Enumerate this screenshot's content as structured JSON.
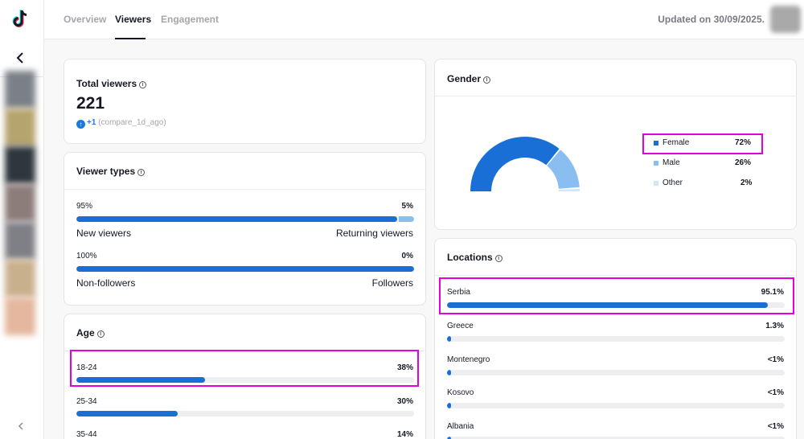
{
  "nav": {
    "tabs": [
      {
        "label": "Overview"
      },
      {
        "label": "Viewers"
      },
      {
        "label": "Engagement"
      }
    ],
    "updated": "Updated on 30/09/2025."
  },
  "rail": {
    "logo_icon": "tiktok-logo",
    "back_icon": "chevron-left-icon",
    "collapse_icon": "chevron-left-icon",
    "thumb_colors": [
      "#7b8088",
      "#b6a46e",
      "#2f363d",
      "#8c7c7a",
      "#7f7f86",
      "#c9b08d",
      "#e4b79e"
    ]
  },
  "total_viewers": {
    "title": "Total viewers",
    "value": "221",
    "delta": "+1",
    "compare": "(compare_1d_ago)"
  },
  "viewer_types": {
    "title": "Viewer types",
    "rows": [
      {
        "left_pct": "95%",
        "right_pct": "5%",
        "left_label": "New viewers",
        "right_label": "Returning viewers",
        "fraction": 0.95
      },
      {
        "left_pct": "100%",
        "right_pct": "0%",
        "left_label": "Non-followers",
        "right_label": "Followers",
        "fraction": 1.0
      }
    ]
  },
  "age": {
    "title": "Age",
    "rows": [
      {
        "label": "18-24",
        "pct": "38%",
        "fraction": 0.38
      },
      {
        "label": "25-34",
        "pct": "30%",
        "fraction": 0.3
      },
      {
        "label": "35-44",
        "pct": "14%",
        "fraction": 0.14
      }
    ]
  },
  "gender": {
    "title": "Gender",
    "items": [
      {
        "label": "Female",
        "pct": "72%",
        "fraction": 0.72,
        "color": "#1a6fd6"
      },
      {
        "label": "Male",
        "pct": "26%",
        "fraction": 0.26,
        "color": "#8bbef0"
      },
      {
        "label": "Other",
        "pct": "2%",
        "fraction": 0.02,
        "color": "#d3e6f8"
      }
    ]
  },
  "locations": {
    "title": "Locations",
    "rows": [
      {
        "label": "Serbia",
        "pct": "95.1%",
        "fraction": 0.951
      },
      {
        "label": "Greece",
        "pct": "1.3%",
        "fraction": 0.013
      },
      {
        "label": "Montenegro",
        "pct": "<1%",
        "fraction": 0.005
      },
      {
        "label": "Kosovo",
        "pct": "<1%",
        "fraction": 0.005
      },
      {
        "label": "Albania",
        "pct": "<1%",
        "fraction": 0.005
      }
    ]
  },
  "colors": {
    "accent": "#1a6fd6",
    "accent_light": "#8bbef0",
    "highlight": "#e000e0"
  }
}
